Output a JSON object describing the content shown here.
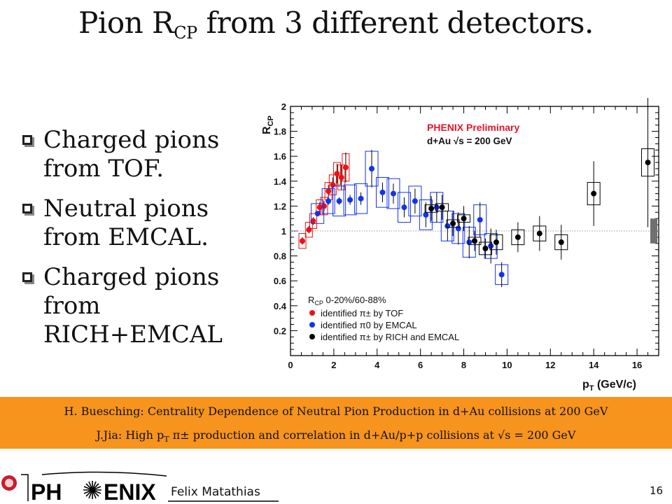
{
  "slide": {
    "title_pre": "Pion R",
    "title_sub": "CP",
    "title_post": " from 3 different detectors.",
    "bullets": [
      "Charged pions from TOF.",
      "Neutral pions from EMCAL.",
      "Charged pions from RICH+EMCAL"
    ],
    "ref1": "H. Buesching: Centrality Dependence of Neutral Pion Production in d+Au collisions at 200 GeV",
    "ref2_pre": "J.Jia: High p",
    "ref2_sub": "T",
    "ref2_post": " π± production and correlation in d+Au/p+p collisions at √s = 200 GeV",
    "logo_left": "PH",
    "logo_right": "ENIX",
    "author": "Felix Matathias",
    "page": "16",
    "footer_color": "#f7941d"
  },
  "chart_data": {
    "type": "scatter",
    "xlim": [
      0,
      17
    ],
    "ylim": [
      0,
      2
    ],
    "xticks": [
      "0",
      "2",
      "4",
      "6",
      "8",
      "10",
      "12",
      "14",
      "16"
    ],
    "yticks": [
      "0.2",
      "0.4",
      "0.6",
      "0.8",
      "1",
      "1.2",
      "1.4",
      "1.6",
      "1.8",
      "2"
    ],
    "xlabel": "p",
    "xlabel_sub": "T",
    "xlabel_unit": " (GeV/c)",
    "ylabel": "R",
    "ylabel_sub": "CP",
    "annotation1": "PHENIX Preliminary",
    "annotation2": "d+Au √s = 200 GeV",
    "legend_title": "R",
    "legend_title_sub": "CP",
    "legend_title_rest": " 0-20%/60-88%",
    "reference_line": 1,
    "norm_box": [
      0.9,
      1.1
    ],
    "series": [
      {
        "name": "identified π± by TOF",
        "color": "#ee1111",
        "points": [
          {
            "x": 0.55,
            "y": 0.92,
            "yerr": 0.03,
            "sys": 0.06
          },
          {
            "x": 0.85,
            "y": 1.01,
            "yerr": 0.03,
            "sys": 0.06
          },
          {
            "x": 1.05,
            "y": 1.08,
            "yerr": 0.03,
            "sys": 0.06
          },
          {
            "x": 1.35,
            "y": 1.19,
            "yerr": 0.04,
            "sys": 0.06
          },
          {
            "x": 1.55,
            "y": 1.2,
            "yerr": 0.04,
            "sys": 0.07
          },
          {
            "x": 1.75,
            "y": 1.32,
            "yerr": 0.05,
            "sys": 0.07
          },
          {
            "x": 1.95,
            "y": 1.37,
            "yerr": 0.06,
            "sys": 0.08
          },
          {
            "x": 2.15,
            "y": 1.46,
            "yerr": 0.08,
            "sys": 0.09
          },
          {
            "x": 2.35,
            "y": 1.43,
            "yerr": 0.1,
            "sys": 0.1
          },
          {
            "x": 2.55,
            "y": 1.51,
            "yerr": 0.12,
            "sys": 0.11
          }
        ]
      },
      {
        "name": "identified π0 by EMCAL",
        "color": "#1133ee",
        "points": [
          {
            "x": 1.25,
            "y": 1.14,
            "yerr": 0.02,
            "sys": 0.08
          },
          {
            "x": 1.75,
            "y": 1.24,
            "yerr": 0.03,
            "sys": 0.1
          },
          {
            "x": 2.25,
            "y": 1.24,
            "yerr": 0.03,
            "sys": 0.12
          },
          {
            "x": 2.75,
            "y": 1.25,
            "yerr": 0.04,
            "sys": 0.12
          },
          {
            "x": 3.25,
            "y": 1.26,
            "yerr": 0.05,
            "sys": 0.12
          },
          {
            "x": 3.75,
            "y": 1.5,
            "yerr": 0.15,
            "sys": 0.14
          },
          {
            "x": 4.25,
            "y": 1.31,
            "yerr": 0.08,
            "sys": 0.12
          },
          {
            "x": 4.75,
            "y": 1.3,
            "yerr": 0.08,
            "sys": 0.12
          },
          {
            "x": 5.25,
            "y": 1.19,
            "yerr": 0.08,
            "sys": 0.12
          },
          {
            "x": 5.75,
            "y": 1.24,
            "yerr": 0.1,
            "sys": 0.12
          },
          {
            "x": 6.25,
            "y": 1.13,
            "yerr": 0.1,
            "sys": 0.12
          },
          {
            "x": 6.75,
            "y": 1.19,
            "yerr": 0.12,
            "sys": 0.12
          },
          {
            "x": 7.25,
            "y": 1.04,
            "yerr": 0.12,
            "sys": 0.12
          },
          {
            "x": 7.75,
            "y": 1.02,
            "yerr": 0.13,
            "sys": 0.12
          },
          {
            "x": 8.25,
            "y": 0.91,
            "yerr": 0.13,
            "sys": 0.12
          },
          {
            "x": 8.75,
            "y": 1.09,
            "yerr": 0.14,
            "sys": 0.12
          },
          {
            "x": 9.25,
            "y": 0.88,
            "yerr": 0.14,
            "sys": 0.1
          },
          {
            "x": 9.75,
            "y": 0.65,
            "yerr": 0.1,
            "sys": 0.08
          }
        ]
      },
      {
        "name": "identified π± by RICH and EMCAL",
        "color": "#000000",
        "points": [
          {
            "x": 6.5,
            "y": 1.18,
            "yerr": 0.1,
            "sys": 0.03
          },
          {
            "x": 7.0,
            "y": 1.19,
            "yerr": 0.1,
            "sys": 0.03
          },
          {
            "x": 7.5,
            "y": 1.06,
            "yerr": 0.1,
            "sys": 0.03
          },
          {
            "x": 8.0,
            "y": 1.1,
            "yerr": 0.1,
            "sys": 0.03
          },
          {
            "x": 8.5,
            "y": 0.92,
            "yerr": 0.08,
            "sys": 0.03
          },
          {
            "x": 9.0,
            "y": 0.86,
            "yerr": 0.08,
            "sys": 0.05
          },
          {
            "x": 9.5,
            "y": 0.91,
            "yerr": 0.1,
            "sys": 0.06
          },
          {
            "x": 10.5,
            "y": 0.95,
            "yerr": 0.12,
            "sys": 0.06
          },
          {
            "x": 11.5,
            "y": 0.98,
            "yerr": 0.14,
            "sys": 0.06
          },
          {
            "x": 12.5,
            "y": 0.91,
            "yerr": 0.14,
            "sys": 0.06
          },
          {
            "x": 14.0,
            "y": 1.3,
            "yerr": 0.26,
            "sys": 0.09
          },
          {
            "x": 16.5,
            "y": 1.55,
            "yerr": 0.52,
            "sys": 0.11
          }
        ]
      }
    ]
  }
}
